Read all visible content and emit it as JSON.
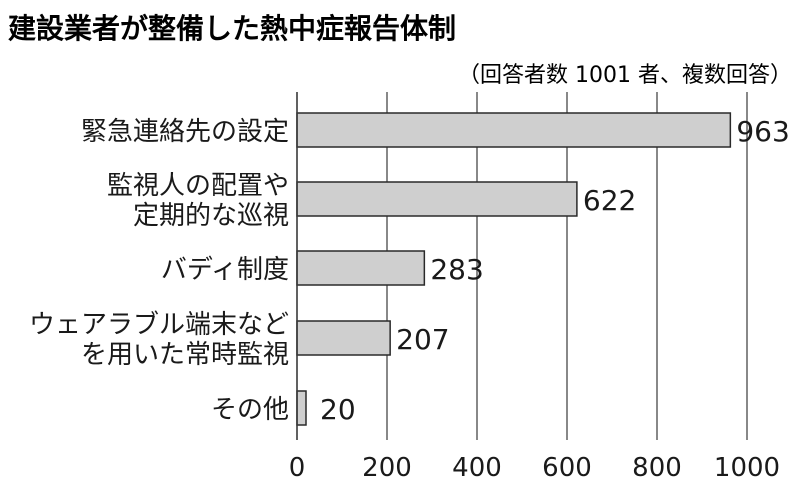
{
  "chart_data": {
    "type": "bar",
    "orientation": "horizontal",
    "title": "建設業者が整備した熱中症報告体制",
    "subtitle": "（回答者数 1001 者、複数回答）",
    "categories": [
      [
        "緊急連絡先の設定"
      ],
      [
        "監視人の配置や",
        "定期的な巡視"
      ],
      [
        "バディ制度"
      ],
      [
        "ウェアラブル端末など",
        "を用いた常時監視"
      ],
      [
        "その他"
      ]
    ],
    "values": [
      963,
      622,
      283,
      207,
      20
    ],
    "value_labels": [
      "963",
      "622",
      "283",
      "207",
      "20"
    ],
    "xlim": [
      0,
      1000
    ],
    "ticks": [
      0,
      200,
      400,
      600,
      800,
      1000
    ],
    "tick_labels": [
      "0",
      "200",
      "400",
      "600",
      "800",
      "1000"
    ],
    "xlabel": "",
    "ylabel": "",
    "grid": "vertical",
    "colors": {
      "bar_fill": "#cfcfcf",
      "bar_stroke": "#2a2a2a",
      "grid": "#3a3a3a",
      "text": "#1a1a1a"
    }
  }
}
